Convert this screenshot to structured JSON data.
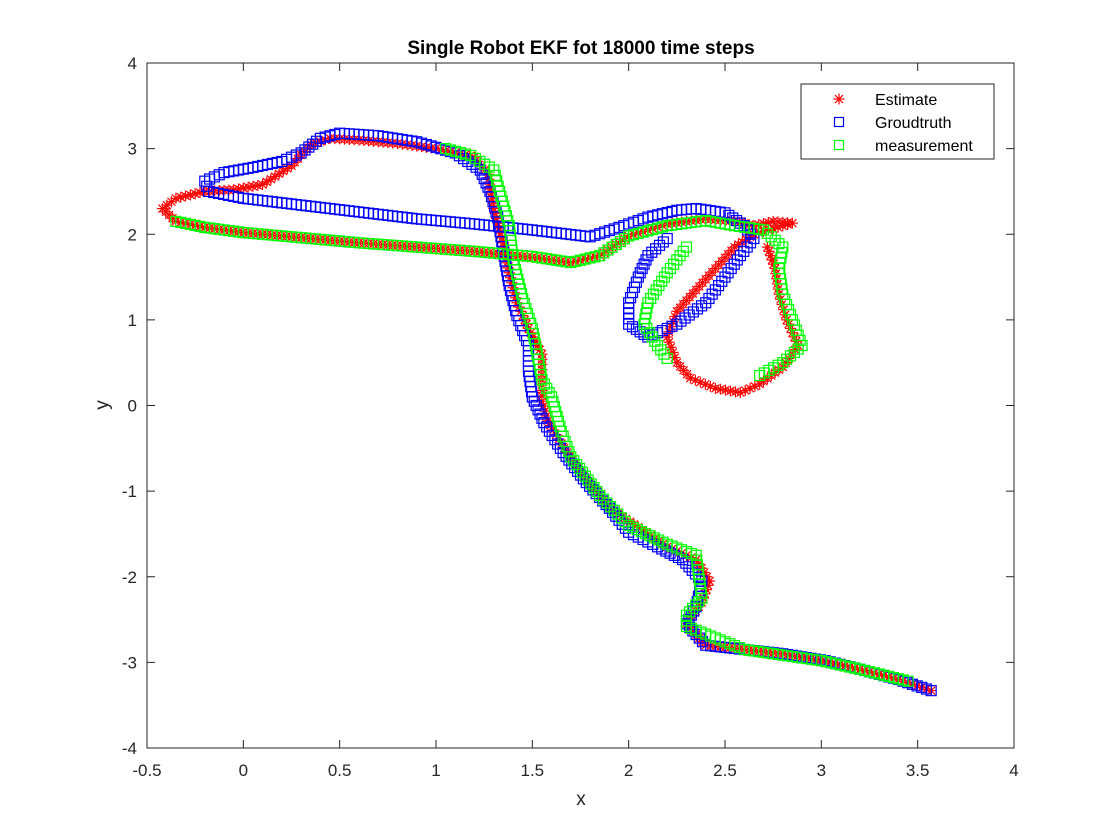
{
  "chart_data": {
    "type": "scatter",
    "title": "Single Robot EKF fot 18000 time steps",
    "xlabel": "x",
    "ylabel": "y",
    "xlim": [
      -0.5,
      4
    ],
    "ylim": [
      -4,
      4
    ],
    "xticks": [
      -0.5,
      0,
      0.5,
      1,
      1.5,
      2,
      2.5,
      3,
      3.5,
      4
    ],
    "yticks": [
      -4,
      -3,
      -2,
      -1,
      0,
      1,
      2,
      3,
      4
    ],
    "xtick_labels": [
      "-0.5",
      "0",
      "0.5",
      "1",
      "1.5",
      "2",
      "2.5",
      "3",
      "3.5",
      "4"
    ],
    "ytick_labels": [
      "-4",
      "-3",
      "-2",
      "-1",
      "0",
      "1",
      "2",
      "3",
      "4"
    ],
    "grid": false,
    "legend_position": "top-right",
    "series": [
      {
        "name": "Estimate",
        "marker": "asterisk",
        "color": "#ff0000",
        "points": [
          [
            3.57,
            -3.33
          ],
          [
            3.4,
            -3.2
          ],
          [
            3.2,
            -3.08
          ],
          [
            3.02,
            -2.98
          ],
          [
            2.8,
            -2.9
          ],
          [
            2.6,
            -2.85
          ],
          [
            2.4,
            -2.8
          ],
          [
            2.3,
            -2.55
          ],
          [
            2.38,
            -2.3
          ],
          [
            2.42,
            -2.05
          ],
          [
            2.35,
            -1.8
          ],
          [
            2.2,
            -1.65
          ],
          [
            2.05,
            -1.42
          ],
          [
            1.9,
            -1.2
          ],
          [
            1.8,
            -0.9
          ],
          [
            1.68,
            -0.55
          ],
          [
            1.58,
            -0.18
          ],
          [
            1.55,
            0.05
          ],
          [
            1.55,
            0.3
          ],
          [
            1.55,
            0.6
          ],
          [
            1.48,
            0.9
          ],
          [
            1.42,
            1.2
          ],
          [
            1.38,
            1.55
          ],
          [
            1.35,
            1.9
          ],
          [
            1.3,
            2.3
          ],
          [
            1.27,
            2.7
          ],
          [
            1.2,
            2.9
          ],
          [
            1.0,
            3.0
          ],
          [
            0.8,
            3.06
          ],
          [
            0.6,
            3.1
          ],
          [
            0.45,
            3.12
          ],
          [
            0.35,
            3.05
          ],
          [
            0.25,
            2.8
          ],
          [
            0.1,
            2.58
          ],
          [
            -0.05,
            2.52
          ],
          [
            -0.2,
            2.5
          ],
          [
            -0.35,
            2.42
          ],
          [
            -0.42,
            2.3
          ],
          [
            -0.35,
            2.15
          ],
          [
            -0.2,
            2.08
          ],
          [
            0.0,
            2.02
          ],
          [
            0.3,
            1.96
          ],
          [
            0.6,
            1.9
          ],
          [
            0.9,
            1.85
          ],
          [
            1.2,
            1.8
          ],
          [
            1.5,
            1.73
          ],
          [
            1.7,
            1.67
          ],
          [
            1.85,
            1.75
          ],
          [
            2.0,
            1.98
          ],
          [
            2.2,
            2.12
          ],
          [
            2.4,
            2.18
          ],
          [
            2.55,
            2.15
          ],
          [
            2.65,
            2.1
          ],
          [
            2.75,
            2.15
          ],
          [
            2.85,
            2.13
          ],
          [
            2.65,
            2.0
          ],
          [
            2.55,
            1.85
          ],
          [
            2.45,
            1.6
          ],
          [
            2.35,
            1.35
          ],
          [
            2.25,
            1.1
          ],
          [
            2.2,
            0.8
          ],
          [
            2.25,
            0.5
          ],
          [
            2.32,
            0.32
          ],
          [
            2.45,
            0.2
          ],
          [
            2.58,
            0.15
          ],
          [
            2.68,
            0.25
          ],
          [
            2.8,
            0.45
          ],
          [
            2.88,
            0.7
          ],
          [
            2.82,
            1.0
          ],
          [
            2.78,
            1.3
          ],
          [
            2.76,
            1.6
          ],
          [
            2.72,
            1.85
          ]
        ]
      },
      {
        "name": "Groudtruth",
        "marker": "square",
        "color": "#0000ff",
        "points": [
          [
            3.57,
            -3.33
          ],
          [
            3.4,
            -3.2
          ],
          [
            3.2,
            -3.08
          ],
          [
            3.02,
            -2.98
          ],
          [
            2.8,
            -2.9
          ],
          [
            2.6,
            -2.85
          ],
          [
            2.4,
            -2.8
          ],
          [
            2.3,
            -2.55
          ],
          [
            2.35,
            -2.35
          ],
          [
            2.38,
            -2.05
          ],
          [
            2.28,
            -1.8
          ],
          [
            2.15,
            -1.65
          ],
          [
            2.0,
            -1.48
          ],
          [
            1.9,
            -1.2
          ],
          [
            1.78,
            -0.9
          ],
          [
            1.66,
            -0.55
          ],
          [
            1.56,
            -0.2
          ],
          [
            1.5,
            0.1
          ],
          [
            1.48,
            0.4
          ],
          [
            1.48,
            0.7
          ],
          [
            1.42,
            1.05
          ],
          [
            1.38,
            1.4
          ],
          [
            1.35,
            1.8
          ],
          [
            1.32,
            2.2
          ],
          [
            1.28,
            2.5
          ],
          [
            1.23,
            2.75
          ],
          [
            1.1,
            2.95
          ],
          [
            0.9,
            3.08
          ],
          [
            0.7,
            3.15
          ],
          [
            0.5,
            3.18
          ],
          [
            0.4,
            3.12
          ],
          [
            0.3,
            2.95
          ],
          [
            0.2,
            2.85
          ],
          [
            0.05,
            2.78
          ],
          [
            -0.1,
            2.72
          ],
          [
            -0.2,
            2.62
          ],
          [
            -0.18,
            2.5
          ],
          [
            0.0,
            2.42
          ],
          [
            0.3,
            2.34
          ],
          [
            0.6,
            2.26
          ],
          [
            0.9,
            2.18
          ],
          [
            1.2,
            2.12
          ],
          [
            1.5,
            2.05
          ],
          [
            1.8,
            1.97
          ],
          [
            1.95,
            2.08
          ],
          [
            2.1,
            2.2
          ],
          [
            2.25,
            2.28
          ],
          [
            2.35,
            2.3
          ],
          [
            2.5,
            2.25
          ],
          [
            2.6,
            2.1
          ],
          [
            2.65,
            1.95
          ],
          [
            2.58,
            1.75
          ],
          [
            2.5,
            1.5
          ],
          [
            2.4,
            1.2
          ],
          [
            2.25,
            0.95
          ],
          [
            2.1,
            0.8
          ],
          [
            2.0,
            0.95
          ],
          [
            2.0,
            1.2
          ],
          [
            2.05,
            1.5
          ],
          [
            2.1,
            1.75
          ],
          [
            2.2,
            1.95
          ]
        ]
      },
      {
        "name": "measurement",
        "marker": "square",
        "color": "#00ff00",
        "points": [
          [
            3.45,
            -3.22
          ],
          [
            3.2,
            -3.08
          ],
          [
            3.0,
            -2.98
          ],
          [
            2.6,
            -2.85
          ],
          [
            2.3,
            -2.58
          ],
          [
            2.3,
            -2.45
          ],
          [
            2.38,
            -2.25
          ],
          [
            2.35,
            -1.75
          ],
          [
            2.2,
            -1.62
          ],
          [
            2.0,
            -1.4
          ],
          [
            1.85,
            -1.05
          ],
          [
            1.7,
            -0.6
          ],
          [
            1.65,
            -0.3
          ],
          [
            1.6,
            0.1
          ],
          [
            1.55,
            0.3
          ],
          [
            1.5,
            0.9
          ],
          [
            1.45,
            1.25
          ],
          [
            1.4,
            1.7
          ],
          [
            1.38,
            2.1
          ],
          [
            1.33,
            2.5
          ],
          [
            1.3,
            2.75
          ],
          [
            1.18,
            2.92
          ],
          [
            1.05,
            3.0
          ],
          [
            -0.35,
            2.15
          ],
          [
            -0.2,
            2.08
          ],
          [
            0.0,
            2.02
          ],
          [
            0.3,
            1.96
          ],
          [
            0.6,
            1.9
          ],
          [
            0.9,
            1.85
          ],
          [
            1.2,
            1.8
          ],
          [
            1.5,
            1.74
          ],
          [
            1.7,
            1.67
          ],
          [
            1.85,
            1.75
          ],
          [
            2.0,
            1.98
          ],
          [
            2.2,
            2.1
          ],
          [
            2.4,
            2.16
          ],
          [
            2.55,
            2.1
          ],
          [
            2.7,
            2.05
          ],
          [
            2.8,
            1.85
          ],
          [
            2.78,
            1.6
          ],
          [
            2.8,
            1.3
          ],
          [
            2.85,
            1.0
          ],
          [
            2.9,
            0.7
          ],
          [
            2.8,
            0.5
          ],
          [
            2.68,
            0.35
          ],
          [
            2.3,
            1.85
          ],
          [
            2.2,
            1.55
          ],
          [
            2.1,
            1.2
          ],
          [
            2.08,
            0.95
          ],
          [
            2.15,
            0.7
          ],
          [
            2.2,
            0.55
          ]
        ]
      }
    ]
  }
}
